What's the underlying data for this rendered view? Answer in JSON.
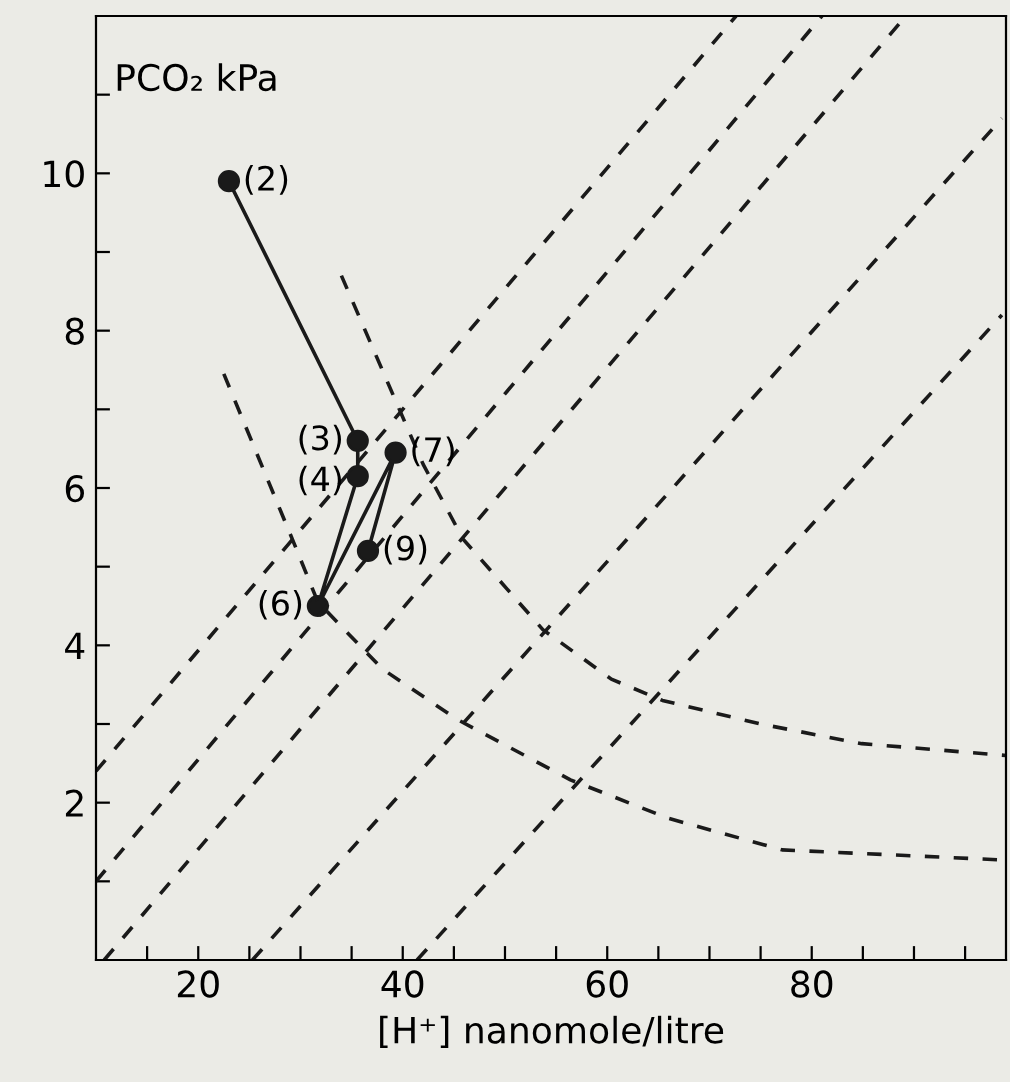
{
  "chart_data": {
    "type": "line",
    "xlabel": "[H⁺] nanomole/litre",
    "ylabel": "PCO₂ kPa",
    "xlim": [
      10,
      99
    ],
    "ylim": [
      0,
      12
    ],
    "xticks": [
      {
        "value": 15,
        "label": null
      },
      20,
      {
        "value": 25,
        "label": null
      },
      {
        "value": 30,
        "label": null
      },
      {
        "value": 35,
        "label": null
      },
      40,
      {
        "value": 45,
        "label": null
      },
      {
        "value": 50,
        "label": null
      },
      {
        "value": 55,
        "label": null
      },
      60,
      {
        "value": 65,
        "label": null
      },
      {
        "value": 70,
        "label": null
      },
      {
        "value": 75,
        "label": null
      },
      80,
      {
        "value": 85,
        "label": null
      },
      {
        "value": 90,
        "label": null
      },
      {
        "value": 95,
        "label": null
      }
    ],
    "yticks": [
      {
        "value": 1,
        "label": null
      },
      2,
      {
        "value": 3,
        "label": null
      },
      4,
      {
        "value": 5,
        "label": null
      },
      6,
      {
        "value": 7,
        "label": null
      },
      8,
      {
        "value": 9,
        "label": null
      },
      10,
      {
        "value": 11,
        "label": null
      }
    ],
    "series": [
      {
        "color": "#1a1a1a",
        "marker": "circle",
        "line_style": "solid",
        "x": [
          23,
          35.6,
          35.6,
          31.7,
          39.3,
          36.6
        ],
        "values": [
          9.9,
          6.6,
          6.15,
          4.5,
          6.45,
          5.2
        ]
      },
      {
        "color": "#1a1a1a",
        "marker": "none",
        "line_style": "dashed",
        "x": [
          10,
          72.6
        ],
        "values": [
          2.4,
          12
        ]
      },
      {
        "color": "#1a1a1a",
        "marker": "none",
        "line_style": "dashed",
        "x": [
          10,
          81
        ],
        "values": [
          1.0,
          12
        ]
      },
      {
        "color": "#1a1a1a",
        "marker": "none",
        "line_style": "dashed",
        "x": [
          10.8,
          89.2
        ],
        "values": [
          0,
          12
        ]
      },
      {
        "color": "#1a1a1a",
        "marker": "none",
        "line_style": "dashed",
        "x": [
          25.3,
          98.6
        ],
        "values": [
          0,
          10.7
        ]
      },
      {
        "color": "#1a1a1a",
        "marker": "none",
        "line_style": "dashed",
        "x": [
          41.4,
          98.6
        ],
        "values": [
          0,
          8.2
        ]
      },
      {
        "color": "#1a1a1a",
        "marker": "none",
        "line_style": "dashed",
        "x": [
          22.5,
          29.2,
          31.7,
          38,
          45.3,
          56.4,
          66,
          77.1,
          99
        ],
        "values": [
          7.45,
          5.35,
          4.55,
          3.7,
          3.06,
          2.29,
          1.8,
          1.4,
          1.27
        ]
      },
      {
        "color": "#1a1a1a",
        "marker": "none",
        "line_style": "dashed",
        "x": [
          34,
          42,
          45.9,
          53.7,
          60.4,
          65.4,
          75,
          84.9,
          99
        ],
        "values": [
          8.7,
          6.3,
          5.35,
          4.2,
          3.57,
          3.3,
          3.0,
          2.75,
          2.6
        ]
      }
    ],
    "annotations": [
      {
        "text": "(2)",
        "x": 23,
        "y": 9.9
      },
      {
        "text": "(3)",
        "x": 35.6,
        "y": 6.6
      },
      {
        "text": "(4)",
        "x": 35.6,
        "y": 6.15
      },
      {
        "text": "(6)",
        "x": 31.7,
        "y": 4.5
      },
      {
        "text": "(7)",
        "x": 39.3,
        "y": 6.45
      },
      {
        "text": "(9)",
        "x": 36.6,
        "y": 5.2
      }
    ]
  }
}
